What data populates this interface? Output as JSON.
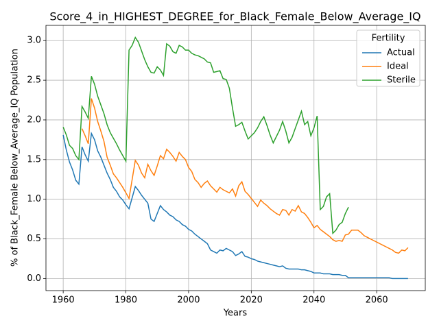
{
  "chart_data": {
    "type": "line",
    "title": "Score_4_in_HIGHEST_DEGREE_for_Black_Female_Below_Average_IQ",
    "x_label": "Years",
    "y_label": "% of Black_Female Below_Average_IQ Population",
    "legend_title": "Fertility",
    "legend": "upper right",
    "grid": true,
    "xlim": [
      1954.5,
      2075.5
    ],
    "ylim": [
      -0.152,
      3.192
    ],
    "xticks": [
      1960,
      1980,
      2000,
      2020,
      2040,
      2060
    ],
    "yticks": [
      {
        "value": 0,
        "label": "0.0"
      },
      0.5,
      {
        "value": 1,
        "label": "1.0"
      },
      1.5,
      {
        "value": 2,
        "label": "2.0"
      },
      2.5,
      {
        "value": 3,
        "label": "3.0"
      }
    ],
    "x": [
      1960,
      1961,
      1962,
      1963,
      1964,
      1965,
      1966,
      1967,
      1968,
      1969,
      1970,
      1971,
      1972,
      1973,
      1974,
      1975,
      1976,
      1977,
      1978,
      1979,
      1980,
      1981,
      1982,
      1983,
      1984,
      1985,
      1986,
      1987,
      1988,
      1989,
      1990,
      1991,
      1992,
      1993,
      1994,
      1995,
      1996,
      1997,
      1998,
      1999,
      2000,
      2001,
      2002,
      2003,
      2004,
      2005,
      2006,
      2007,
      2008,
      2009,
      2010,
      2011,
      2012,
      2013,
      2014,
      2015,
      2016,
      2017,
      2018,
      2019,
      2020,
      2021,
      2022,
      2023,
      2024,
      2025,
      2026,
      2027,
      2028,
      2029,
      2030,
      2031,
      2032,
      2033,
      2034,
      2035,
      2036,
      2037,
      2038,
      2039,
      2040,
      2041,
      2042,
      2043,
      2044,
      2045,
      2046,
      2047,
      2048,
      2049,
      2050,
      2051,
      2052,
      2053,
      2054,
      2055,
      2056,
      2057,
      2058,
      2059,
      2060,
      2061,
      2062,
      2063,
      2064,
      2065,
      2066,
      2067,
      2068,
      2069,
      2070
    ],
    "series": [
      {
        "name": "Actual",
        "color": "#1f77b4",
        "values": [
          1.81,
          1.62,
          1.47,
          1.37,
          1.24,
          1.19,
          1.66,
          1.56,
          1.48,
          1.83,
          1.75,
          1.61,
          1.53,
          1.43,
          1.33,
          1.25,
          1.15,
          1.1,
          1.03,
          0.99,
          0.93,
          0.88,
          1.02,
          1.16,
          1.11,
          1.05,
          1.0,
          0.95,
          0.75,
          0.72,
          0.82,
          0.92,
          0.87,
          0.84,
          0.8,
          0.78,
          0.74,
          0.72,
          0.68,
          0.66,
          0.62,
          0.6,
          0.56,
          0.53,
          0.5,
          0.47,
          0.44,
          0.36,
          0.34,
          0.32,
          0.36,
          0.35,
          0.38,
          0.36,
          0.34,
          0.29,
          0.31,
          0.34,
          0.28,
          0.27,
          0.25,
          0.24,
          0.22,
          0.21,
          0.2,
          0.19,
          0.18,
          0.17,
          0.16,
          0.15,
          0.16,
          0.13,
          0.12,
          0.12,
          0.12,
          0.12,
          0.11,
          0.11,
          0.1,
          0.09,
          0.07,
          0.07,
          0.07,
          0.06,
          0.06,
          0.06,
          0.05,
          0.05,
          0.05,
          0.04,
          0.04,
          0.01,
          0.01,
          0.01,
          0.01,
          0.01,
          0.01,
          0.01,
          0.01,
          0.01,
          0.01,
          0.01,
          0.01,
          0.01,
          0.01,
          0,
          0,
          0,
          0,
          0,
          0
        ]
      },
      {
        "name": "Ideal",
        "color": "#ff7f0e",
        "values": [
          null,
          null,
          null,
          null,
          null,
          null,
          1.89,
          1.8,
          1.7,
          2.27,
          2.15,
          1.98,
          1.86,
          1.73,
          1.53,
          1.43,
          1.32,
          1.27,
          1.21,
          1.15,
          1.08,
          1.01,
          1.25,
          1.49,
          1.43,
          1.33,
          1.27,
          1.44,
          1.36,
          1.3,
          1.42,
          1.55,
          1.51,
          1.63,
          1.59,
          1.54,
          1.48,
          1.59,
          1.54,
          1.5,
          1.4,
          1.35,
          1.25,
          1.21,
          1.15,
          1.2,
          1.23,
          1.17,
          1.13,
          1.09,
          1.15,
          1.12,
          1.1,
          1.08,
          1.13,
          1.04,
          1.17,
          1.22,
          1.1,
          1.06,
          1.01,
          0.96,
          0.91,
          0.99,
          0.95,
          0.92,
          0.88,
          0.85,
          0.82,
          0.8,
          0.87,
          0.86,
          0.8,
          0.87,
          0.85,
          0.92,
          0.84,
          0.82,
          0.77,
          0.71,
          0.64,
          0.67,
          0.62,
          0.59,
          0.56,
          0.53,
          0.49,
          0.47,
          0.48,
          0.47,
          0.55,
          0.56,
          0.61,
          0.61,
          0.61,
          0.58,
          0.54,
          0.52,
          0.5,
          0.48,
          0.46,
          0.44,
          0.42,
          0.4,
          0.38,
          0.36,
          0.33,
          0.32,
          0.36,
          0.35,
          0.39
        ]
      },
      {
        "name": "Sterile",
        "color": "#2ca02c",
        "values": [
          1.91,
          1.81,
          1.68,
          1.64,
          1.55,
          1.5,
          2.17,
          2.1,
          2.02,
          2.55,
          2.45,
          2.3,
          2.19,
          2.08,
          1.94,
          1.84,
          1.77,
          1.7,
          1.62,
          1.55,
          1.48,
          2.88,
          2.94,
          3.04,
          2.98,
          2.87,
          2.76,
          2.67,
          2.6,
          2.59,
          2.67,
          2.63,
          2.56,
          2.96,
          2.93,
          2.86,
          2.84,
          2.94,
          2.92,
          2.88,
          2.88,
          2.84,
          2.82,
          2.81,
          2.79,
          2.77,
          2.73,
          2.72,
          2.6,
          2.61,
          2.62,
          2.52,
          2.51,
          2.4,
          2.15,
          1.92,
          1.94,
          1.97,
          1.86,
          1.76,
          1.8,
          1.84,
          1.9,
          1.98,
          2.04,
          1.93,
          1.81,
          1.71,
          1.79,
          1.87,
          1.98,
          1.86,
          1.71,
          1.78,
          1.89,
          2.0,
          2.11,
          1.94,
          1.98,
          1.8,
          1.9,
          2.05,
          0.87,
          0.91,
          1.03,
          1.07,
          0.57,
          0.61,
          0.68,
          0.71,
          0.82,
          0.9,
          null,
          null,
          null,
          null,
          null,
          null,
          null,
          null,
          null,
          null,
          null,
          null,
          null,
          null,
          null,
          null,
          null,
          null,
          null
        ]
      }
    ]
  }
}
